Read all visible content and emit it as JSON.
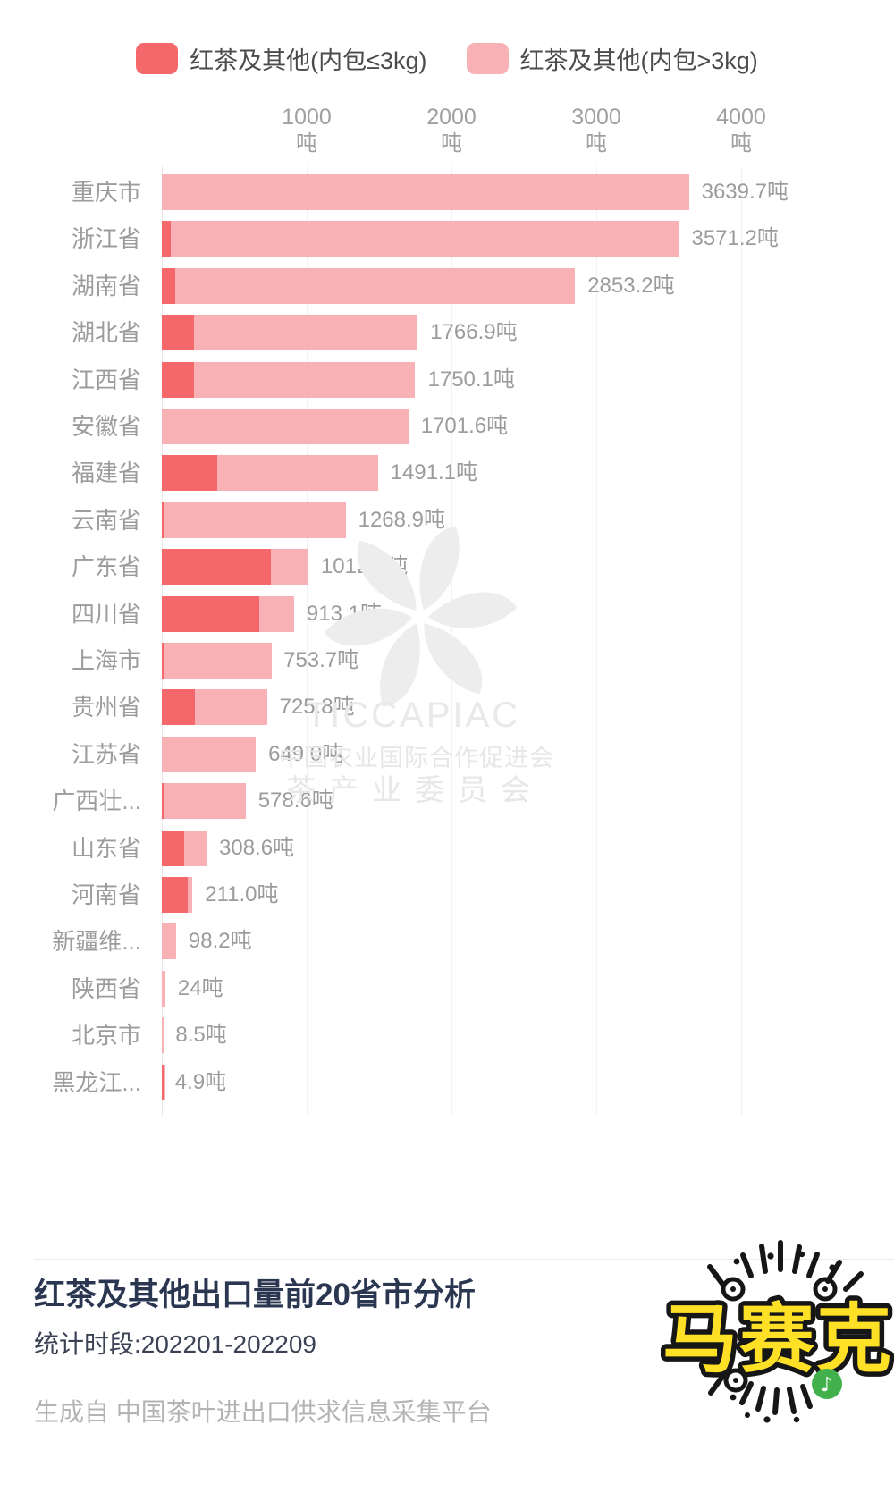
{
  "legend": {
    "items": [
      {
        "label": "红茶及其他(内包≤3kg)",
        "color": "#f4686c"
      },
      {
        "label": "红茶及其他(内包>3kg)",
        "color": "#f8b2b6"
      }
    ]
  },
  "axis": {
    "tick_unit": "吨",
    "ticks": [
      "1000",
      "2000",
      "3000",
      "4000"
    ]
  },
  "chart_data": {
    "type": "bar",
    "orientation": "horizontal",
    "title": "红茶及其他出口量前20省市分析",
    "unit": "吨",
    "x_ticks": [
      1000,
      2000,
      3000,
      4000
    ],
    "xlim": [
      0,
      4700
    ],
    "grid": true,
    "legend_position": "top",
    "categories": [
      "重庆市",
      "浙江省",
      "湖南省",
      "湖北省",
      "江西省",
      "安徽省",
      "福建省",
      "云南省",
      "广东省",
      "四川省",
      "上海市",
      "贵州省",
      "江苏省",
      "广西壮...",
      "山东省",
      "河南省",
      "新疆维...",
      "陕西省",
      "北京市",
      "黑龙江..."
    ],
    "totals": [
      3639.7,
      3571.2,
      2853.2,
      1766.9,
      1750.1,
      1701.6,
      1491.1,
      1268.9,
      1012.0,
      913.1,
      753.7,
      725.8,
      649.0,
      578.6,
      308.6,
      211.0,
      98.2,
      24,
      8.5,
      4.9
    ],
    "value_labels": [
      "3639.7吨",
      "3571.2吨",
      "2853.2吨",
      "1766.9吨",
      "1750.1吨",
      "1701.6吨",
      "1491.1吨",
      "1268.9吨",
      "1012.0吨",
      "913.1吨",
      "753.7吨",
      "725.8吨",
      "649.0吨",
      "578.6吨",
      "308.6吨",
      "211.0吨",
      "98.2吨",
      "24吨",
      "8.5吨",
      "4.9吨"
    ],
    "series": [
      {
        "name": "红茶及其他(内包≤3kg)",
        "color": "#f4686c",
        "values_estimated": [
          0,
          60,
          90,
          220,
          220,
          0,
          380,
          8,
          755,
          670,
          6,
          225,
          0,
          10,
          155,
          180,
          0,
          0,
          0,
          2.5
        ]
      },
      {
        "name": "红茶及其他(内包>3kg)",
        "color": "#f8b2b6",
        "values_estimated": [
          3639.7,
          3511.2,
          2763.2,
          1546.9,
          1530.1,
          1701.6,
          1111.1,
          1260.9,
          257.0,
          243.1,
          747.7,
          500.8,
          649.0,
          568.6,
          153.6,
          31.0,
          98.2,
          24,
          8.5,
          2.4
        ]
      }
    ]
  },
  "watermark": {
    "brand": "TICCAPIAC",
    "org": "中国农业国际合作促进会",
    "committee": "茶产业委员会"
  },
  "footer": {
    "title": "红茶及其他出口量前20省市分析",
    "period": "统计时段:202201-202209",
    "source": "生成自 中国茶叶进出口供求信息采集平台"
  },
  "sticker": {
    "text": "马赛克",
    "text_color": "#fee027",
    "outline_color": "#161616",
    "badge_color": "#43b14b",
    "note_icon": "♪"
  }
}
